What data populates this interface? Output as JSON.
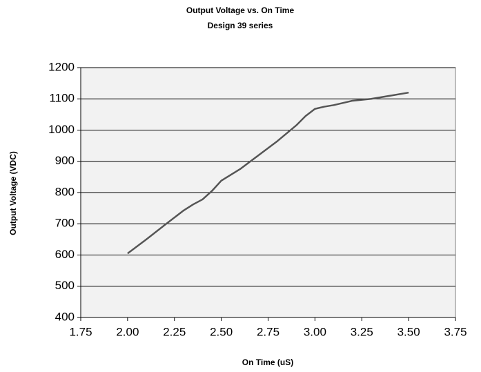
{
  "chart_data": {
    "type": "line",
    "title": "Output Voltage vs. On Time",
    "subtitle": "Design 39 series",
    "x_label": "On Time (uS)",
    "y_label": "Output Voltage (VDC)",
    "x": [
      2.0,
      2.1,
      2.2,
      2.3,
      2.35,
      2.4,
      2.45,
      2.5,
      2.6,
      2.7,
      2.8,
      2.9,
      2.95,
      3.0,
      3.05,
      3.1,
      3.2,
      3.3,
      3.4,
      3.5
    ],
    "series": [
      {
        "name": "Design 39 series",
        "color": "#555555",
        "values": [
          605,
          650,
          697,
          743,
          762,
          778,
          805,
          838,
          875,
          920,
          965,
          1015,
          1045,
          1068,
          1075,
          1080,
          1094,
          1100,
          1110,
          1120
        ]
      }
    ],
    "xlim": [
      1.75,
      3.75
    ],
    "xticks": [
      1.75,
      {
        "value": 2,
        "label": "2.00"
      },
      2.25,
      {
        "value": 2.5,
        "label": "2.50"
      },
      2.75,
      {
        "value": 3,
        "label": "3.00"
      },
      3.25,
      {
        "value": 3.5,
        "label": "3.50"
      },
      3.75
    ],
    "ylim": [
      400,
      1200
    ],
    "yticks": [
      400,
      500,
      600,
      700,
      800,
      900,
      1000,
      1100,
      1200
    ],
    "grid": true
  }
}
